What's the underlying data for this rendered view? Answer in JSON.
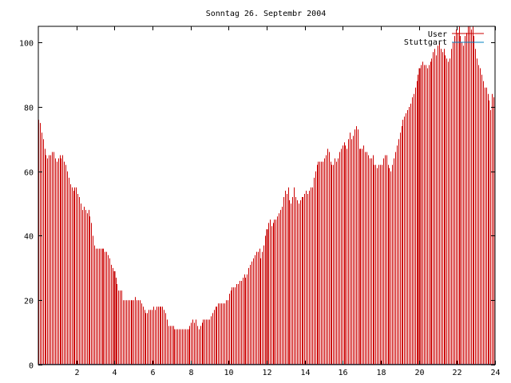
{
  "chart_data": {
    "type": "bar",
    "title": "Sonntag 26. Septembr 2004",
    "xlabel": "",
    "ylabel": "",
    "xlim": [
      0,
      24
    ],
    "ylim": [
      0,
      105
    ],
    "xticks": [
      2,
      4,
      6,
      8,
      10,
      12,
      14,
      16,
      18,
      20,
      22,
      24
    ],
    "yticks": [
      0,
      20,
      40,
      60,
      80,
      100
    ],
    "grid": false,
    "legend_position": "top-right",
    "colors": {
      "User": "#cc0000",
      "Stuttgart": "#0080c0",
      "highlight": "#c00000"
    },
    "highlight_x": [
      4,
      12,
      20
    ],
    "series": [
      {
        "name": "User",
        "values": [
          76,
          75,
          72,
          70,
          67,
          65,
          64,
          65,
          65,
          66,
          66,
          64,
          63,
          64,
          65,
          64,
          65,
          63,
          62,
          60,
          58,
          56,
          55,
          54,
          55,
          55,
          53,
          52,
          50,
          48,
          49,
          48,
          47,
          48,
          46,
          44,
          40,
          37,
          36,
          36,
          36,
          36,
          36,
          36,
          35,
          35,
          34,
          33,
          31,
          30,
          29,
          27,
          25,
          23,
          23,
          23,
          20,
          20,
          20,
          20,
          20,
          20,
          20,
          20,
          21,
          20,
          20,
          20,
          19,
          18,
          17,
          16,
          16,
          17,
          17,
          17,
          18,
          17,
          18,
          18,
          18,
          18,
          18,
          17,
          16,
          14,
          12,
          12,
          12,
          12,
          11,
          11,
          11,
          11,
          11,
          11,
          11,
          11,
          11,
          11,
          12,
          13,
          14,
          13,
          14,
          12,
          11,
          12,
          13,
          14,
          14,
          14,
          14,
          14,
          15,
          16,
          17,
          18,
          18,
          19,
          19,
          19,
          19,
          19,
          20,
          20,
          22,
          23,
          24,
          24,
          24,
          25,
          25,
          26,
          26,
          27,
          28,
          27,
          28,
          30,
          31,
          32,
          33,
          34,
          35,
          35,
          36,
          33,
          35,
          37,
          40,
          42,
          44,
          45,
          43,
          44,
          45,
          45,
          46,
          47,
          48,
          49,
          52,
          54,
          53,
          55,
          51,
          50,
          52,
          55,
          52,
          51,
          50,
          51,
          52,
          52,
          53,
          54,
          53,
          54,
          55,
          55,
          58,
          60,
          62,
          63,
          63,
          63,
          63,
          64,
          65,
          67,
          66,
          63,
          62,
          62,
          64,
          63,
          64,
          66,
          67,
          68,
          69,
          68,
          67,
          70,
          72,
          70,
          71,
          73,
          74,
          73,
          67,
          67,
          67,
          68,
          66,
          66,
          65,
          64,
          64,
          65,
          62,
          62,
          61,
          62,
          62,
          62,
          64,
          65,
          65,
          62,
          61,
          60,
          62,
          64,
          66,
          68,
          70,
          72,
          74,
          76,
          77,
          78,
          79,
          80,
          81,
          83,
          84,
          86,
          88,
          90,
          92,
          93,
          94,
          93,
          93,
          92,
          93,
          94,
          95,
          97,
          98,
          96,
          99,
          100,
          98,
          97,
          98,
          96,
          95,
          94,
          95,
          98,
          100,
          102,
          104,
          103,
          105,
          102,
          100,
          99,
          102,
          103,
          105,
          105,
          104,
          105,
          102,
          98,
          95,
          93,
          92,
          90,
          88,
          86,
          86,
          84,
          82,
          79,
          84,
          83
        ]
      },
      {
        "name": "Stuttgart",
        "values": []
      }
    ]
  }
}
